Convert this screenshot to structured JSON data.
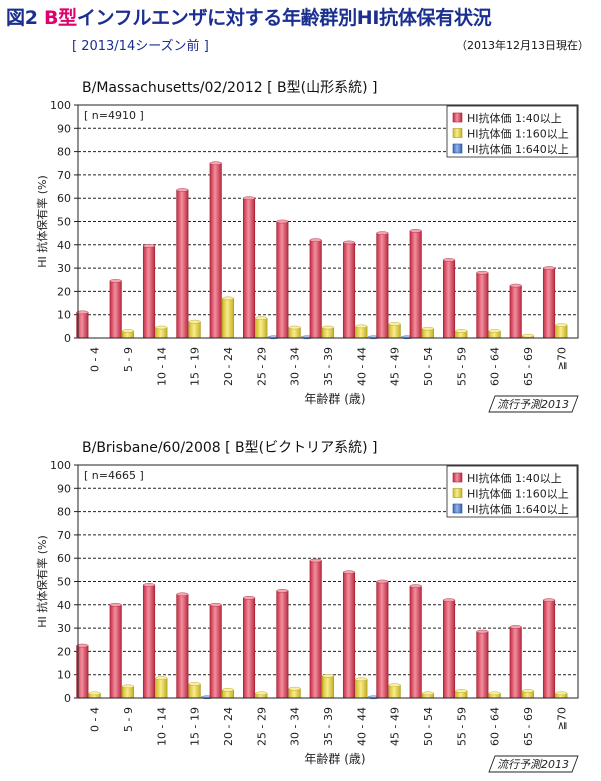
{
  "header": {
    "fig_label": "図2",
    "title_type": "B型",
    "title_rest": "インフルエンザに対する年齢群別HI抗体保有状況",
    "subtitle": "[ 2013/14シーズン前 ]",
    "date": "（2013年12月13日現在）"
  },
  "colors": {
    "series": [
      "#e8334f",
      "#f4dc2c",
      "#3f78d9"
    ]
  },
  "chart_data": [
    {
      "type": "bar",
      "title": "B/Massachusetts/02/2012 [ B型(山形系統) ]",
      "n_label": "[ n=4910 ]",
      "categories": [
        "0 - 4",
        "5 - 9",
        "10 - 14",
        "15 - 19",
        "20 - 24",
        "25 - 29",
        "30 - 34",
        "35 - 39",
        "40 - 44",
        "45 - 49",
        "50 - 54",
        "55 - 59",
        "60 - 64",
        "65 - 69",
        "≧70"
      ],
      "series": [
        {
          "name": "HI抗体価 1:40以上",
          "values": [
            11,
            24.5,
            39.5,
            63.5,
            75,
            60,
            50,
            42,
            41,
            45,
            46,
            33.5,
            28,
            22.5,
            30
          ]
        },
        {
          "name": "HI抗体価 1:160以上",
          "values": [
            0,
            3,
            4.5,
            7,
            17,
            8.5,
            4.5,
            4.5,
            5,
            6,
            4,
            3,
            3,
            1,
            5.5
          ]
        },
        {
          "name": "HI抗体価 1:640以上",
          "values": [
            0,
            0,
            0,
            0,
            0,
            0.3,
            0.3,
            0,
            0.3,
            0.3,
            0,
            0,
            0,
            0,
            0
          ]
        }
      ],
      "xlabel": "年齢群 (歳)",
      "ylabel": "HI 抗体保有率 (%)",
      "ylim": [
        0,
        100
      ],
      "yticks": [
        0,
        10,
        20,
        30,
        40,
        50,
        60,
        70,
        80,
        90,
        100
      ],
      "grid": true,
      "legend": "top-right",
      "badge": "流行予測2013"
    },
    {
      "type": "bar",
      "title": "B/Brisbane/60/2008 [ B型(ビクトリア系統) ]",
      "n_label": "[ n=4665 ]",
      "categories": [
        "0 - 4",
        "5 - 9",
        "10 - 14",
        "15 - 19",
        "20 - 24",
        "25 - 29",
        "30 - 34",
        "35 - 39",
        "40 - 44",
        "45 - 49",
        "50 - 54",
        "55 - 59",
        "60 - 64",
        "65 - 69",
        "≧70"
      ],
      "series": [
        {
          "name": "HI抗体価 1:40以上",
          "values": [
            22.5,
            40,
            48.5,
            44.5,
            40,
            43,
            46,
            59,
            54,
            50,
            48,
            42,
            28.5,
            30.5,
            42
          ]
        },
        {
          "name": "HI抗体価 1:160以上",
          "values": [
            2,
            5,
            8.5,
            6,
            3.5,
            2,
            4,
            9.5,
            8,
            5.5,
            2,
            3,
            2,
            3,
            2
          ]
        },
        {
          "name": "HI抗体価 1:640以上",
          "values": [
            0,
            0,
            0,
            0.3,
            0,
            0,
            0,
            0,
            0.3,
            0,
            0,
            0,
            0,
            0,
            0
          ]
        }
      ],
      "xlabel": "年齢群 (歳)",
      "ylabel": "HI 抗体保有率 (%)",
      "ylim": [
        0,
        100
      ],
      "yticks": [
        0,
        10,
        20,
        30,
        40,
        50,
        60,
        70,
        80,
        90,
        100
      ],
      "grid": true,
      "legend": "top-right",
      "badge": "流行予測2013"
    }
  ]
}
